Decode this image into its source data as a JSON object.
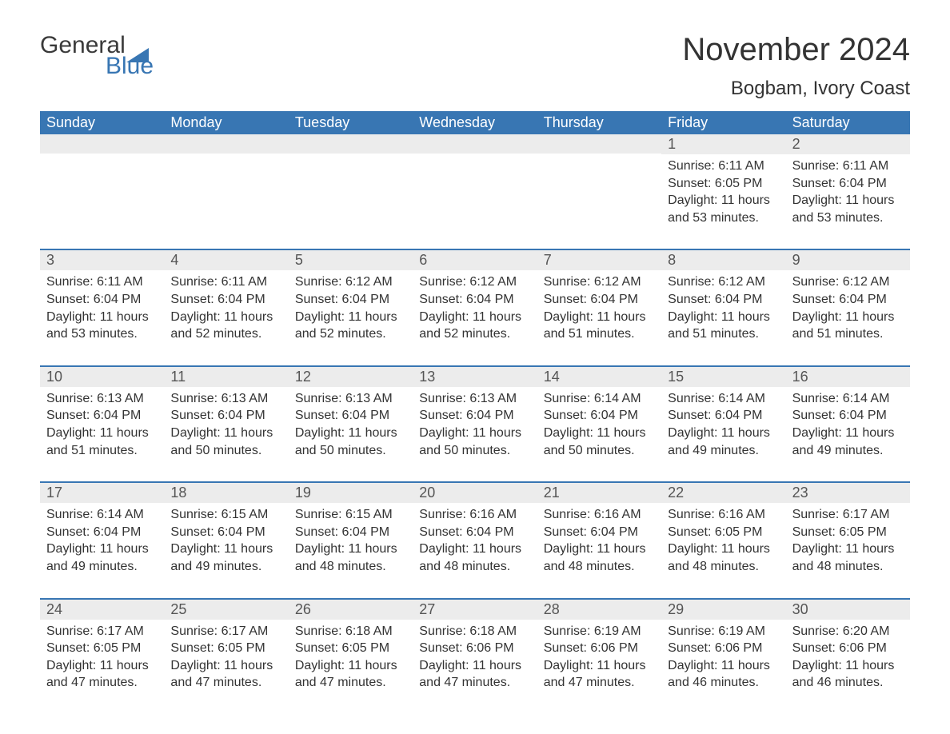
{
  "logo": {
    "word1": "General",
    "word2": "Blue",
    "triangle_color": "#3876b3"
  },
  "header": {
    "month_year": "November 2024",
    "location": "Bogbam, Ivory Coast"
  },
  "colors": {
    "header_bg": "#3876b3",
    "header_text": "#ffffff",
    "day_bar_bg": "#ececec",
    "row_border": "#3876b3",
    "body_text": "#333333"
  },
  "weekdays": [
    "Sunday",
    "Monday",
    "Tuesday",
    "Wednesday",
    "Thursday",
    "Friday",
    "Saturday"
  ],
  "weeks": [
    [
      {
        "empty": true
      },
      {
        "empty": true
      },
      {
        "empty": true
      },
      {
        "empty": true
      },
      {
        "empty": true
      },
      {
        "day": "1",
        "sunrise": "Sunrise: 6:11 AM",
        "sunset": "Sunset: 6:05 PM",
        "daylight1": "Daylight: 11 hours",
        "daylight2": "and 53 minutes."
      },
      {
        "day": "2",
        "sunrise": "Sunrise: 6:11 AM",
        "sunset": "Sunset: 6:04 PM",
        "daylight1": "Daylight: 11 hours",
        "daylight2": "and 53 minutes."
      }
    ],
    [
      {
        "day": "3",
        "sunrise": "Sunrise: 6:11 AM",
        "sunset": "Sunset: 6:04 PM",
        "daylight1": "Daylight: 11 hours",
        "daylight2": "and 53 minutes."
      },
      {
        "day": "4",
        "sunrise": "Sunrise: 6:11 AM",
        "sunset": "Sunset: 6:04 PM",
        "daylight1": "Daylight: 11 hours",
        "daylight2": "and 52 minutes."
      },
      {
        "day": "5",
        "sunrise": "Sunrise: 6:12 AM",
        "sunset": "Sunset: 6:04 PM",
        "daylight1": "Daylight: 11 hours",
        "daylight2": "and 52 minutes."
      },
      {
        "day": "6",
        "sunrise": "Sunrise: 6:12 AM",
        "sunset": "Sunset: 6:04 PM",
        "daylight1": "Daylight: 11 hours",
        "daylight2": "and 52 minutes."
      },
      {
        "day": "7",
        "sunrise": "Sunrise: 6:12 AM",
        "sunset": "Sunset: 6:04 PM",
        "daylight1": "Daylight: 11 hours",
        "daylight2": "and 51 minutes."
      },
      {
        "day": "8",
        "sunrise": "Sunrise: 6:12 AM",
        "sunset": "Sunset: 6:04 PM",
        "daylight1": "Daylight: 11 hours",
        "daylight2": "and 51 minutes."
      },
      {
        "day": "9",
        "sunrise": "Sunrise: 6:12 AM",
        "sunset": "Sunset: 6:04 PM",
        "daylight1": "Daylight: 11 hours",
        "daylight2": "and 51 minutes."
      }
    ],
    [
      {
        "day": "10",
        "sunrise": "Sunrise: 6:13 AM",
        "sunset": "Sunset: 6:04 PM",
        "daylight1": "Daylight: 11 hours",
        "daylight2": "and 51 minutes."
      },
      {
        "day": "11",
        "sunrise": "Sunrise: 6:13 AM",
        "sunset": "Sunset: 6:04 PM",
        "daylight1": "Daylight: 11 hours",
        "daylight2": "and 50 minutes."
      },
      {
        "day": "12",
        "sunrise": "Sunrise: 6:13 AM",
        "sunset": "Sunset: 6:04 PM",
        "daylight1": "Daylight: 11 hours",
        "daylight2": "and 50 minutes."
      },
      {
        "day": "13",
        "sunrise": "Sunrise: 6:13 AM",
        "sunset": "Sunset: 6:04 PM",
        "daylight1": "Daylight: 11 hours",
        "daylight2": "and 50 minutes."
      },
      {
        "day": "14",
        "sunrise": "Sunrise: 6:14 AM",
        "sunset": "Sunset: 6:04 PM",
        "daylight1": "Daylight: 11 hours",
        "daylight2": "and 50 minutes."
      },
      {
        "day": "15",
        "sunrise": "Sunrise: 6:14 AM",
        "sunset": "Sunset: 6:04 PM",
        "daylight1": "Daylight: 11 hours",
        "daylight2": "and 49 minutes."
      },
      {
        "day": "16",
        "sunrise": "Sunrise: 6:14 AM",
        "sunset": "Sunset: 6:04 PM",
        "daylight1": "Daylight: 11 hours",
        "daylight2": "and 49 minutes."
      }
    ],
    [
      {
        "day": "17",
        "sunrise": "Sunrise: 6:14 AM",
        "sunset": "Sunset: 6:04 PM",
        "daylight1": "Daylight: 11 hours",
        "daylight2": "and 49 minutes."
      },
      {
        "day": "18",
        "sunrise": "Sunrise: 6:15 AM",
        "sunset": "Sunset: 6:04 PM",
        "daylight1": "Daylight: 11 hours",
        "daylight2": "and 49 minutes."
      },
      {
        "day": "19",
        "sunrise": "Sunrise: 6:15 AM",
        "sunset": "Sunset: 6:04 PM",
        "daylight1": "Daylight: 11 hours",
        "daylight2": "and 48 minutes."
      },
      {
        "day": "20",
        "sunrise": "Sunrise: 6:16 AM",
        "sunset": "Sunset: 6:04 PM",
        "daylight1": "Daylight: 11 hours",
        "daylight2": "and 48 minutes."
      },
      {
        "day": "21",
        "sunrise": "Sunrise: 6:16 AM",
        "sunset": "Sunset: 6:04 PM",
        "daylight1": "Daylight: 11 hours",
        "daylight2": "and 48 minutes."
      },
      {
        "day": "22",
        "sunrise": "Sunrise: 6:16 AM",
        "sunset": "Sunset: 6:05 PM",
        "daylight1": "Daylight: 11 hours",
        "daylight2": "and 48 minutes."
      },
      {
        "day": "23",
        "sunrise": "Sunrise: 6:17 AM",
        "sunset": "Sunset: 6:05 PM",
        "daylight1": "Daylight: 11 hours",
        "daylight2": "and 48 minutes."
      }
    ],
    [
      {
        "day": "24",
        "sunrise": "Sunrise: 6:17 AM",
        "sunset": "Sunset: 6:05 PM",
        "daylight1": "Daylight: 11 hours",
        "daylight2": "and 47 minutes."
      },
      {
        "day": "25",
        "sunrise": "Sunrise: 6:17 AM",
        "sunset": "Sunset: 6:05 PM",
        "daylight1": "Daylight: 11 hours",
        "daylight2": "and 47 minutes."
      },
      {
        "day": "26",
        "sunrise": "Sunrise: 6:18 AM",
        "sunset": "Sunset: 6:05 PM",
        "daylight1": "Daylight: 11 hours",
        "daylight2": "and 47 minutes."
      },
      {
        "day": "27",
        "sunrise": "Sunrise: 6:18 AM",
        "sunset": "Sunset: 6:06 PM",
        "daylight1": "Daylight: 11 hours",
        "daylight2": "and 47 minutes."
      },
      {
        "day": "28",
        "sunrise": "Sunrise: 6:19 AM",
        "sunset": "Sunset: 6:06 PM",
        "daylight1": "Daylight: 11 hours",
        "daylight2": "and 47 minutes."
      },
      {
        "day": "29",
        "sunrise": "Sunrise: 6:19 AM",
        "sunset": "Sunset: 6:06 PM",
        "daylight1": "Daylight: 11 hours",
        "daylight2": "and 46 minutes."
      },
      {
        "day": "30",
        "sunrise": "Sunrise: 6:20 AM",
        "sunset": "Sunset: 6:06 PM",
        "daylight1": "Daylight: 11 hours",
        "daylight2": "and 46 minutes."
      }
    ]
  ]
}
